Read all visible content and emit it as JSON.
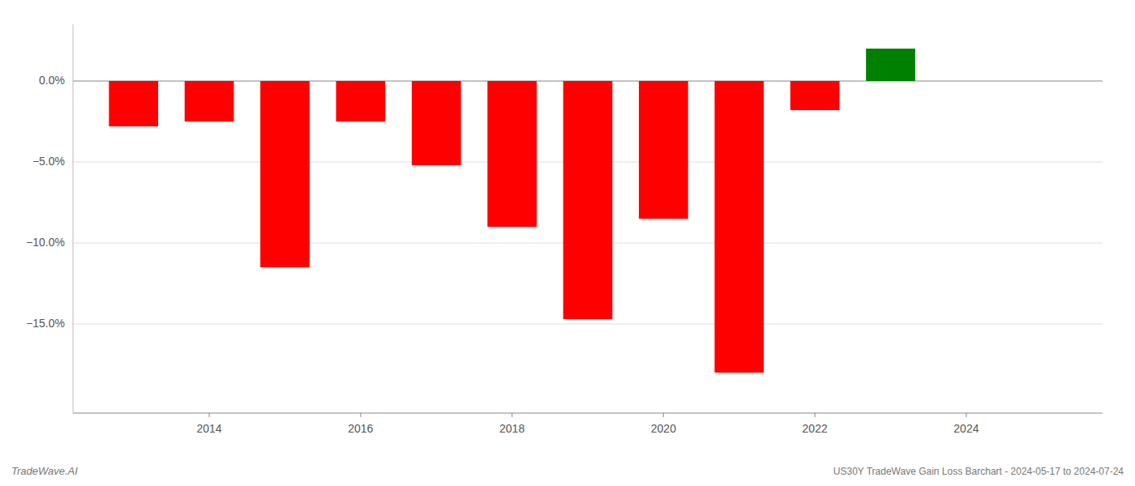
{
  "chart_data": {
    "type": "bar",
    "title": "US30Y TradeWave Gain Loss Barchart - 2024-05-17 to 2024-07-24",
    "annotations": [
      "TradeWave.AI"
    ],
    "x": [
      2013,
      2014,
      2015,
      2016,
      2017,
      2018,
      2019,
      2020,
      2021,
      2022,
      2023
    ],
    "values": [
      -2.8,
      -2.5,
      -11.5,
      -2.5,
      -5.2,
      -9.0,
      -14.7,
      -8.5,
      -18.0,
      -1.8,
      2.0
    ],
    "colors": [
      "#ff0000",
      "#ff0000",
      "#ff0000",
      "#ff0000",
      "#ff0000",
      "#ff0000",
      "#ff0000",
      "#ff0000",
      "#ff0000",
      "#ff0000",
      "#008000"
    ],
    "xlim": [
      2012.2,
      2025.8
    ],
    "xticks": [
      2014,
      2016,
      2018,
      2020,
      2022,
      2024
    ],
    "ylim": [
      -20.5,
      3.5
    ],
    "yticks": [
      {
        "value": 0,
        "label": "0.0%"
      },
      {
        "value": -5,
        "label": "−5.0%"
      },
      {
        "value": -10,
        "label": "−10.0%"
      },
      {
        "value": -15,
        "label": "−15.0%"
      }
    ],
    "grid": true
  }
}
